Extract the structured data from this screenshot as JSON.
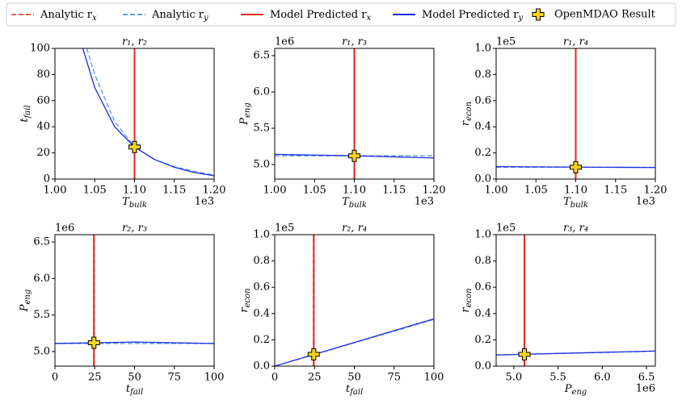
{
  "chart_data": [
    {
      "type": "line",
      "title": "r₁, r₂",
      "xlabel": [
        "T",
        "bulk"
      ],
      "ylabel": [
        "t",
        "fail"
      ],
      "xoffset": "1e3",
      "xlim": [
        1.0,
        1.2
      ],
      "xticks": [
        {
          "value": 1.0,
          "label": "1.00"
        },
        {
          "value": 1.05,
          "label": "1.05"
        },
        {
          "value": 1.1,
          "label": "1.10"
        },
        {
          "value": 1.15,
          "label": "1.15"
        },
        {
          "value": 1.2,
          "label": "1.20"
        }
      ],
      "ylim": [
        0,
        100
      ],
      "yticks": [
        0,
        20,
        40,
        60,
        80,
        100
      ],
      "series": [
        {
          "name": [
            "Analytic r",
            "x"
          ],
          "color": "#f2604c",
          "style": "dashed",
          "x": [
            1.1,
            1.1
          ],
          "values": [
            0,
            100
          ]
        },
        {
          "name": [
            "Analytic r",
            "y"
          ],
          "color": "#5b9ae6",
          "style": "dashed",
          "x": [
            1.04,
            1.05,
            1.075,
            1.1,
            1.125,
            1.15,
            1.175,
            1.2
          ],
          "values": [
            100,
            80,
            44,
            24.5,
            15,
            9.5,
            6,
            3
          ]
        },
        {
          "name": [
            "Model Predicted r",
            "x"
          ],
          "color": "#e8241c",
          "style": "solid",
          "x": [
            1.1,
            1.1
          ],
          "values": [
            0,
            100
          ]
        },
        {
          "name": [
            "Model Predicted r",
            "y"
          ],
          "color": "#1c2be0",
          "style": "solid",
          "x": [
            1.035,
            1.05,
            1.075,
            1.1,
            1.125,
            1.15,
            1.175,
            1.2
          ],
          "values": [
            100,
            70,
            40,
            24.5,
            15,
            9,
            5,
            2.5
          ]
        },
        {
          "name": "OpenMDAO Result",
          "color": "#f7d31c",
          "style": "marker",
          "x": [
            1.1
          ],
          "values": [
            24.5
          ]
        }
      ]
    },
    {
      "type": "line",
      "title": "r₁, r₃",
      "xlabel": [
        "T",
        "bulk"
      ],
      "ylabel": [
        "P",
        "eng"
      ],
      "xoffset": "1e3",
      "yoffset": "1e6",
      "xlim": [
        1.0,
        1.2
      ],
      "xticks": [
        {
          "value": 1.0,
          "label": "1.00"
        },
        {
          "value": 1.05,
          "label": "1.05"
        },
        {
          "value": 1.1,
          "label": "1.10"
        },
        {
          "value": 1.15,
          "label": "1.15"
        },
        {
          "value": 1.2,
          "label": "1.20"
        }
      ],
      "ylim": [
        4.8,
        6.6
      ],
      "yticks": [
        {
          "value": 5.0,
          "label": "5.0"
        },
        5.5,
        {
          "value": 6.0,
          "label": "6.0"
        },
        6.5
      ],
      "series": [
        {
          "color": "#f2604c",
          "style": "dashed",
          "x": [
            1.1,
            1.1
          ],
          "values": [
            4.8,
            6.6
          ]
        },
        {
          "color": "#5b9ae6",
          "style": "dashed",
          "x": [
            1.0,
            1.2
          ],
          "values": [
            5.12,
            5.12
          ]
        },
        {
          "color": "#e8241c",
          "style": "solid",
          "x": [
            1.1,
            1.1
          ],
          "values": [
            4.8,
            6.6
          ]
        },
        {
          "color": "#1c2be0",
          "style": "solid",
          "x": [
            1.0,
            1.1,
            1.2
          ],
          "values": [
            5.14,
            5.12,
            5.09
          ]
        },
        {
          "color": "#f7d31c",
          "style": "marker",
          "x": [
            1.1
          ],
          "values": [
            5.12
          ]
        }
      ]
    },
    {
      "type": "line",
      "title": "r₁, r₄",
      "xlabel": [
        "T",
        "bulk"
      ],
      "ylabel": [
        "r",
        "econ"
      ],
      "xoffset": "1e3",
      "yoffset": "1e5",
      "xlim": [
        1.0,
        1.2
      ],
      "xticks": [
        {
          "value": 1.0,
          "label": "1.00"
        },
        {
          "value": 1.05,
          "label": "1.05"
        },
        {
          "value": 1.1,
          "label": "1.10"
        },
        {
          "value": 1.15,
          "label": "1.15"
        },
        {
          "value": 1.2,
          "label": "1.20"
        }
      ],
      "ylim": [
        0,
        1.0
      ],
      "yticks": [
        {
          "value": 0,
          "label": "0.0"
        },
        0.2,
        0.4,
        0.6,
        0.8,
        {
          "value": 1.0,
          "label": "1.0"
        }
      ],
      "series": [
        {
          "color": "#f2604c",
          "style": "dashed",
          "x": [
            1.1,
            1.1
          ],
          "values": [
            0,
            1.0
          ]
        },
        {
          "color": "#5b9ae6",
          "style": "dashed",
          "x": [
            1.0,
            1.2
          ],
          "values": [
            0.09,
            0.09
          ]
        },
        {
          "color": "#e8241c",
          "style": "solid",
          "x": [
            1.1,
            1.1
          ],
          "values": [
            0,
            1.0
          ]
        },
        {
          "color": "#1c2be0",
          "style": "solid",
          "x": [
            1.0,
            1.2
          ],
          "values": [
            0.095,
            0.088
          ]
        },
        {
          "color": "#f7d31c",
          "style": "marker",
          "x": [
            1.1
          ],
          "values": [
            0.09
          ]
        }
      ]
    },
    {
      "type": "line",
      "title": "r₂, r₃",
      "xlabel": [
        "t",
        "fail"
      ],
      "ylabel": [
        "P",
        "eng"
      ],
      "yoffset": "1e6",
      "xlim": [
        0,
        100
      ],
      "xticks": [
        0,
        25,
        50,
        75,
        100
      ],
      "ylim": [
        4.8,
        6.6
      ],
      "yticks": [
        {
          "value": 5.0,
          "label": "5.0"
        },
        5.5,
        {
          "value": 6.0,
          "label": "6.0"
        },
        6.5
      ],
      "series": [
        {
          "color": "#f2604c",
          "style": "dashed",
          "x": [
            24.5,
            24.5
          ],
          "values": [
            4.8,
            6.6
          ]
        },
        {
          "color": "#5b9ae6",
          "style": "dashed",
          "x": [
            0,
            100
          ],
          "values": [
            5.11,
            5.11
          ]
        },
        {
          "color": "#e8241c",
          "style": "solid",
          "x": [
            24.5,
            24.5
          ],
          "values": [
            4.8,
            6.6
          ]
        },
        {
          "color": "#1c2be0",
          "style": "solid",
          "x": [
            0,
            25,
            50,
            75,
            100
          ],
          "values": [
            5.11,
            5.12,
            5.13,
            5.12,
            5.11
          ]
        },
        {
          "color": "#f7d31c",
          "style": "marker",
          "x": [
            24.5
          ],
          "values": [
            5.12
          ]
        }
      ]
    },
    {
      "type": "line",
      "title": "r₂, r₄",
      "xlabel": [
        "t",
        "fail"
      ],
      "ylabel": [
        "r",
        "econ"
      ],
      "yoffset": "1e5",
      "xlim": [
        0,
        100
      ],
      "xticks": [
        0,
        25,
        50,
        75,
        100
      ],
      "ylim": [
        0,
        1.0
      ],
      "yticks": [
        {
          "value": 0,
          "label": "0.0"
        },
        0.2,
        0.4,
        0.6,
        0.8,
        {
          "value": 1.0,
          "label": "1.0"
        }
      ],
      "series": [
        {
          "color": "#f2604c",
          "style": "dashed",
          "x": [
            24.5,
            24.5
          ],
          "values": [
            0,
            1.0
          ]
        },
        {
          "color": "#5b9ae6",
          "style": "dashed",
          "x": [
            0,
            100
          ],
          "values": [
            0,
            0.355
          ]
        },
        {
          "color": "#e8241c",
          "style": "solid",
          "x": [
            24.5,
            24.5
          ],
          "values": [
            0,
            1.0
          ]
        },
        {
          "color": "#1c2be0",
          "style": "solid",
          "x": [
            0,
            100
          ],
          "values": [
            0,
            0.36
          ]
        },
        {
          "color": "#f7d31c",
          "style": "marker",
          "x": [
            24.5
          ],
          "values": [
            0.09
          ]
        }
      ]
    },
    {
      "type": "line",
      "title": "r₃, r₄",
      "xlabel": [
        "P",
        "eng"
      ],
      "ylabel": [
        "r",
        "econ"
      ],
      "xoffset": "1e6",
      "yoffset": "1e5",
      "xlim": [
        4.8,
        6.6
      ],
      "xticks": [
        {
          "value": 5.0,
          "label": "5.0"
        },
        5.5,
        {
          "value": 6.0,
          "label": "6.0"
        },
        6.5
      ],
      "ylim": [
        0,
        1.0
      ],
      "yticks": [
        {
          "value": 0,
          "label": "0.0"
        },
        0.2,
        0.4,
        0.6,
        0.8,
        {
          "value": 1.0,
          "label": "1.0"
        }
      ],
      "series": [
        {
          "color": "#f2604c",
          "style": "dashed",
          "x": [
            5.12,
            5.12
          ],
          "values": [
            0,
            1.0
          ]
        },
        {
          "color": "#5b9ae6",
          "style": "dashed",
          "x": [
            4.8,
            6.6
          ],
          "values": [
            0.085,
            0.113
          ]
        },
        {
          "color": "#e8241c",
          "style": "solid",
          "x": [
            5.12,
            5.12
          ],
          "values": [
            0,
            1.0
          ]
        },
        {
          "color": "#1c2be0",
          "style": "solid",
          "x": [
            4.8,
            6.6
          ],
          "values": [
            0.085,
            0.115
          ]
        },
        {
          "color": "#f7d31c",
          "style": "marker",
          "x": [
            5.12
          ],
          "values": [
            0.09
          ]
        }
      ]
    }
  ]
}
